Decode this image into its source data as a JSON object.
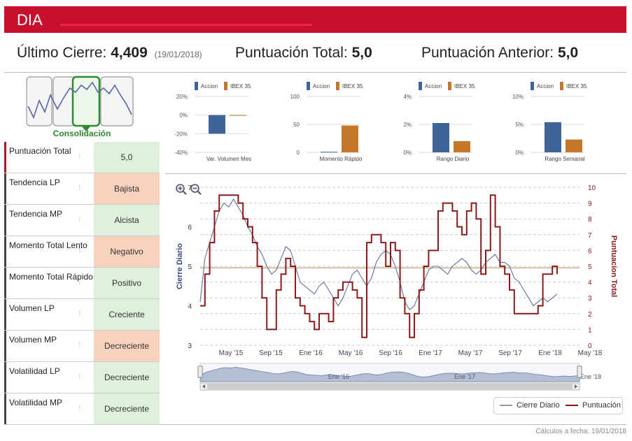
{
  "header": {
    "ticker": "DIA"
  },
  "summary": {
    "last_close_label": "Último Cierre:",
    "last_close_value": "4,409",
    "last_close_date": "(19/01/2018)",
    "total_score_label": "Puntuación Total:",
    "total_score_value": "5,0",
    "previous_score_label": "Puntuación Anterior:",
    "previous_score_value": "5,0"
  },
  "trend": {
    "label": "Consolidación"
  },
  "indicators": [
    {
      "label": "Puntuación Total",
      "value": "5,0",
      "tone": "green"
    },
    {
      "label": "Tendencia LP",
      "value": "Bajista",
      "tone": "orange"
    },
    {
      "label": "Tendencia MP",
      "value": "Alcista",
      "tone": "green"
    },
    {
      "label": "Momento Total Lento",
      "value": "Negativo",
      "tone": "orange"
    },
    {
      "label": "Momento Total Rápido",
      "value": "Positivo",
      "tone": "green"
    },
    {
      "label": "Volumen LP",
      "value": "Creciente",
      "tone": "green"
    },
    {
      "label": "Volumen MP",
      "value": "Decreciente",
      "tone": "orange"
    },
    {
      "label": "Volatilidad LP",
      "value": "Decreciente",
      "tone": "green"
    },
    {
      "label": "Volatilidad MP",
      "value": "Decreciente",
      "tone": "green"
    }
  ],
  "colors": {
    "brand": "#c8102e",
    "accion": "#3f6499",
    "ibex": "#c2772a",
    "close_line": "#6070a0",
    "score_line": "#8b1a1a",
    "green_bg": "#dff0dc",
    "orange_bg": "#f8d2bc"
  },
  "chart_data": [
    {
      "type": "bar",
      "legend": [
        "Accion",
        "IBEX 35"
      ],
      "categories": [
        "Var. Volumen Mes"
      ],
      "series": [
        {
          "name": "Accion",
          "values": [
            -20
          ]
        },
        {
          "name": "IBEX 35",
          "values": [
            0
          ]
        }
      ],
      "y_ticks": [
        "20%",
        "0%",
        "-20%",
        "-40%"
      ],
      "ylim": [
        -40,
        20
      ]
    },
    {
      "type": "bar",
      "legend": [
        "Accion",
        "IBEX 35"
      ],
      "categories": [
        "Momento Rápido"
      ],
      "series": [
        {
          "name": "Accion",
          "values": [
            1
          ]
        },
        {
          "name": "IBEX 35",
          "values": [
            48
          ]
        }
      ],
      "y_ticks": [
        "100",
        "50",
        "0"
      ],
      "ylim": [
        0,
        100
      ]
    },
    {
      "type": "bar",
      "legend": [
        "Accion",
        "IBEX 35"
      ],
      "categories": [
        "Rango Diario"
      ],
      "series": [
        {
          "name": "Accion",
          "values": [
            2.1
          ]
        },
        {
          "name": "IBEX 35",
          "values": [
            0.8
          ]
        }
      ],
      "y_ticks": [
        "4%",
        "2%",
        "0%"
      ],
      "ylim": [
        0,
        4
      ]
    },
    {
      "type": "bar",
      "legend": [
        "Accion",
        "IBEX 35"
      ],
      "categories": [
        "Rango Semanal"
      ],
      "series": [
        {
          "name": "Accion",
          "values": [
            5.4
          ]
        },
        {
          "name": "IBEX 35",
          "values": [
            2.3
          ]
        }
      ],
      "y_ticks": [
        "10%",
        "5%",
        "0%"
      ],
      "ylim": [
        0,
        10
      ]
    },
    {
      "type": "line",
      "ylabel": "Cierre Diario",
      "y2label": "Puntuacion Total",
      "x_ticks": [
        "May '15",
        "Sep '15",
        "Ene '16",
        "May '16",
        "Sep '16",
        "Ene '17",
        "May '17",
        "Sep '17",
        "Ene '18",
        "May '18"
      ],
      "y_ticks": [
        "3",
        "4",
        "5",
        "6",
        "7"
      ],
      "y2_ticks": [
        "0",
        "1",
        "2",
        "3",
        "4",
        "5",
        "6",
        "7",
        "8",
        "9",
        "10"
      ],
      "ylim": [
        3,
        7
      ],
      "y2lim": [
        0,
        10
      ],
      "reference_y2": 4.9,
      "navigator_labels": [
        "Ene '16",
        "Ene '17",
        "Ene '18"
      ],
      "series": [
        {
          "name": "Cierre Diario",
          "values": [
            4.1,
            5.2,
            5.6,
            6.0,
            6.4,
            6.6,
            6.5,
            6.7,
            6.5,
            6.3,
            6.0,
            5.8,
            5.5,
            5.3,
            5.0,
            4.8,
            4.9,
            5.2,
            5.5,
            5.4,
            5.0,
            4.6,
            4.5,
            4.4,
            4.3,
            4.5,
            4.6,
            4.4,
            4.2,
            4.0,
            4.2,
            4.5,
            4.8,
            4.9,
            4.7,
            4.5,
            4.7,
            5.1,
            5.3,
            5.4,
            5.3,
            5.0,
            4.6,
            4.1,
            3.9,
            4.0,
            4.3,
            4.6,
            4.9,
            5.0,
            5.0,
            4.9,
            4.8,
            5.0,
            5.1,
            5.2,
            5.1,
            4.9,
            4.8,
            4.9,
            5.1,
            5.2,
            5.3,
            5.1,
            5.1,
            5.0,
            4.7,
            4.6,
            4.4,
            4.2,
            4.0,
            4.1,
            4.2,
            4.1,
            4.2,
            4.3
          ]
        },
        {
          "name": "Puntuación",
          "values": [
            2.5,
            4.5,
            6.5,
            8.5,
            9.5,
            9.5,
            9.5,
            9.5,
            9.0,
            8.0,
            7.5,
            6.5,
            5.0,
            3.0,
            1.0,
            1.0,
            3.5,
            4.5,
            5.5,
            5.0,
            3.0,
            2.5,
            2.0,
            1.5,
            1.0,
            2.0,
            2.0,
            1.5,
            3.0,
            3.5,
            4.0,
            4.0,
            3.5,
            3.0,
            0.5,
            6.5,
            7.0,
            7.0,
            6.5,
            5.0,
            6.5,
            6.0,
            3.0,
            2.0,
            0.5,
            2.0,
            3.5,
            5.0,
            6.0,
            6.0,
            8.5,
            9.0,
            9.0,
            8.5,
            7.5,
            7.0,
            8.5,
            9.0,
            8.0,
            4.5,
            6.0,
            9.5,
            7.5,
            5.0,
            4.5,
            3.5,
            2.0,
            2.0,
            2.0,
            2.0,
            2.0,
            2.5,
            4.5,
            4.5,
            5.0,
            4.5
          ]
        }
      ]
    }
  ],
  "legend": {
    "close": "Cierre Diario",
    "score": "Puntuación"
  },
  "footer": {
    "calc_date": "Cálculos a fecha: 19/01/2018"
  }
}
